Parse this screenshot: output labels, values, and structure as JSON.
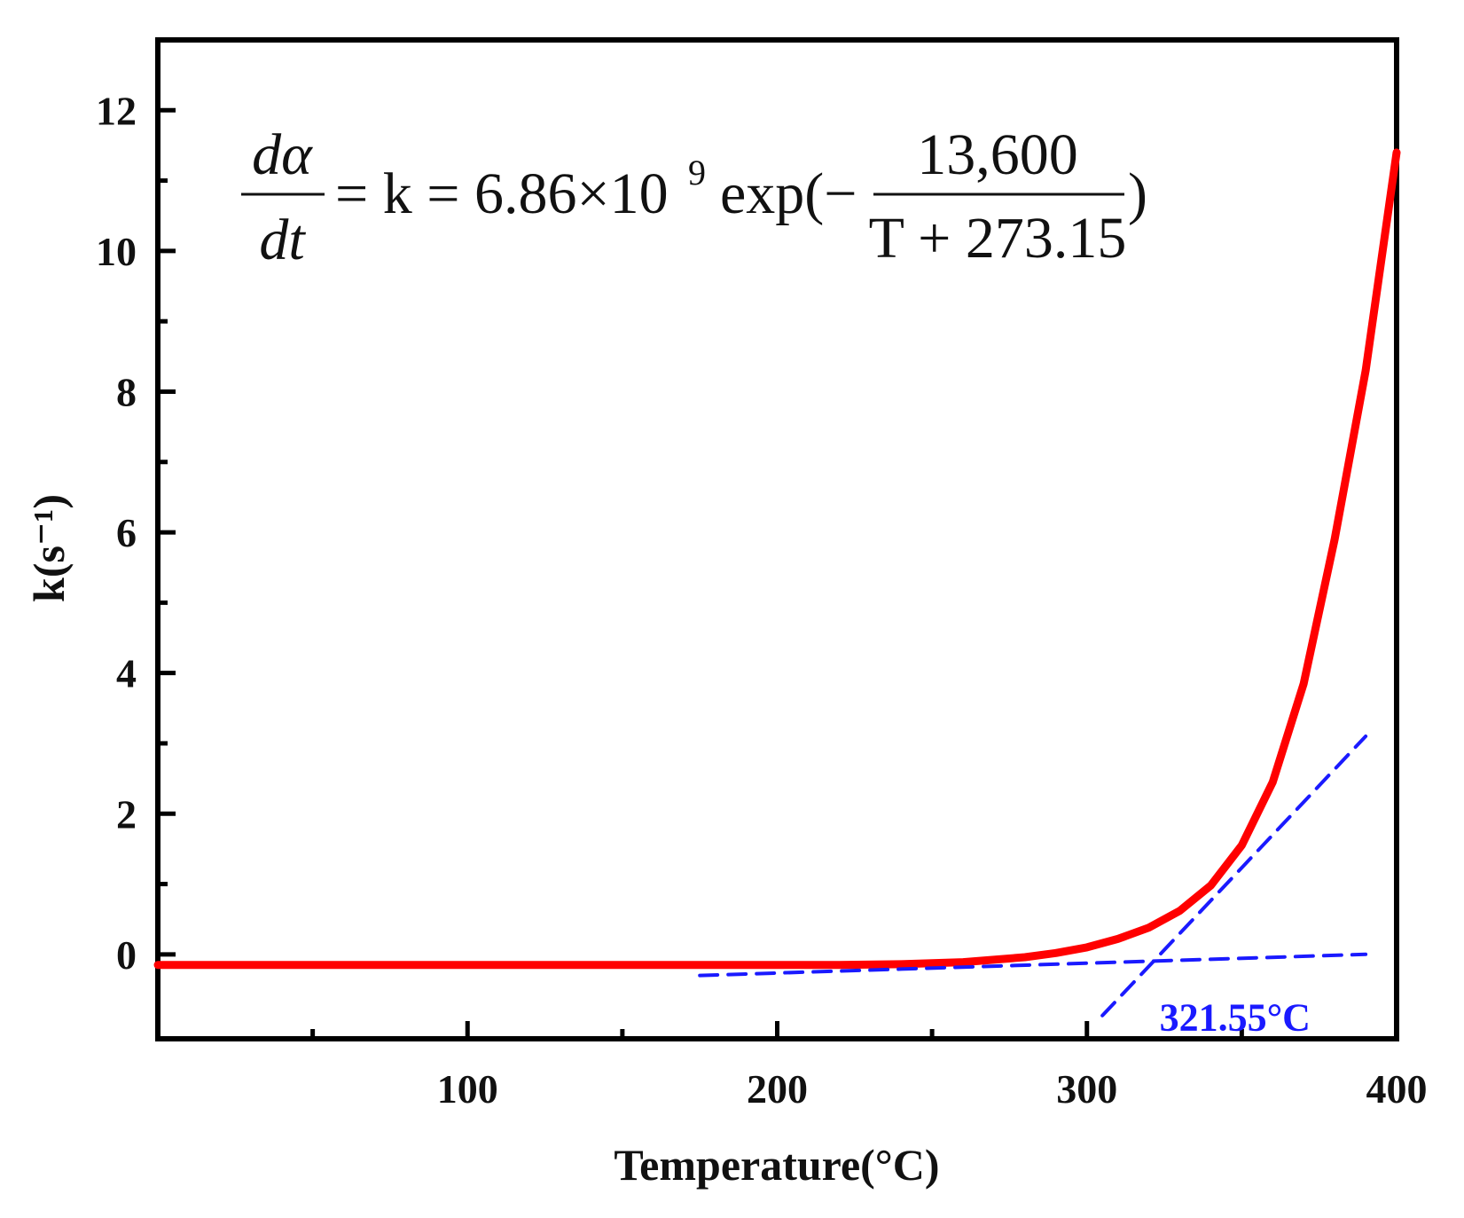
{
  "chart_data": {
    "type": "line",
    "title": "",
    "xlabel": "Temperature(°C)",
    "ylabel": "k(s⁻¹)",
    "xlim": [
      0,
      400
    ],
    "ylim": [
      -1.2,
      13
    ],
    "xticks": [
      100,
      200,
      300,
      400
    ],
    "yticks": [
      0,
      2,
      4,
      6,
      8,
      10,
      12
    ],
    "grid": false,
    "series": [
      {
        "name": "k",
        "color": "#ff0000",
        "style": "solid",
        "x": [
          0,
          50,
          100,
          150,
          200,
          220,
          240,
          260,
          280,
          290,
          300,
          310,
          320,
          330,
          340,
          350,
          360,
          370,
          380,
          390,
          400
        ],
        "y": [
          -0.15,
          -0.15,
          -0.15,
          -0.15,
          -0.15,
          -0.15,
          -0.14,
          -0.11,
          -0.04,
          0.02,
          0.1,
          0.22,
          0.38,
          0.62,
          0.98,
          1.55,
          2.45,
          3.85,
          5.9,
          8.3,
          11.4
        ]
      },
      {
        "name": "baseline tangent",
        "color": "#1a1aff",
        "style": "dashed",
        "x": [
          175,
          390
        ],
        "y": [
          -0.3,
          0.0
        ]
      },
      {
        "name": "steep tangent",
        "color": "#1a1aff",
        "style": "dashed",
        "x": [
          305,
          390
        ],
        "y": [
          -0.87,
          3.1
        ]
      }
    ],
    "annotations": [
      {
        "text": "321.55°C",
        "x": 322,
        "y": -0.6,
        "color": "#1a1aff"
      }
    ],
    "equation": {
      "lhs_num": "dα",
      "lhs_den": "dt",
      "middle": "= k = 6.86×10",
      "exponent": "9",
      "func": "exp(−",
      "frac_num": "13,600",
      "frac_den": "T + 273.15",
      "close": ")"
    }
  }
}
